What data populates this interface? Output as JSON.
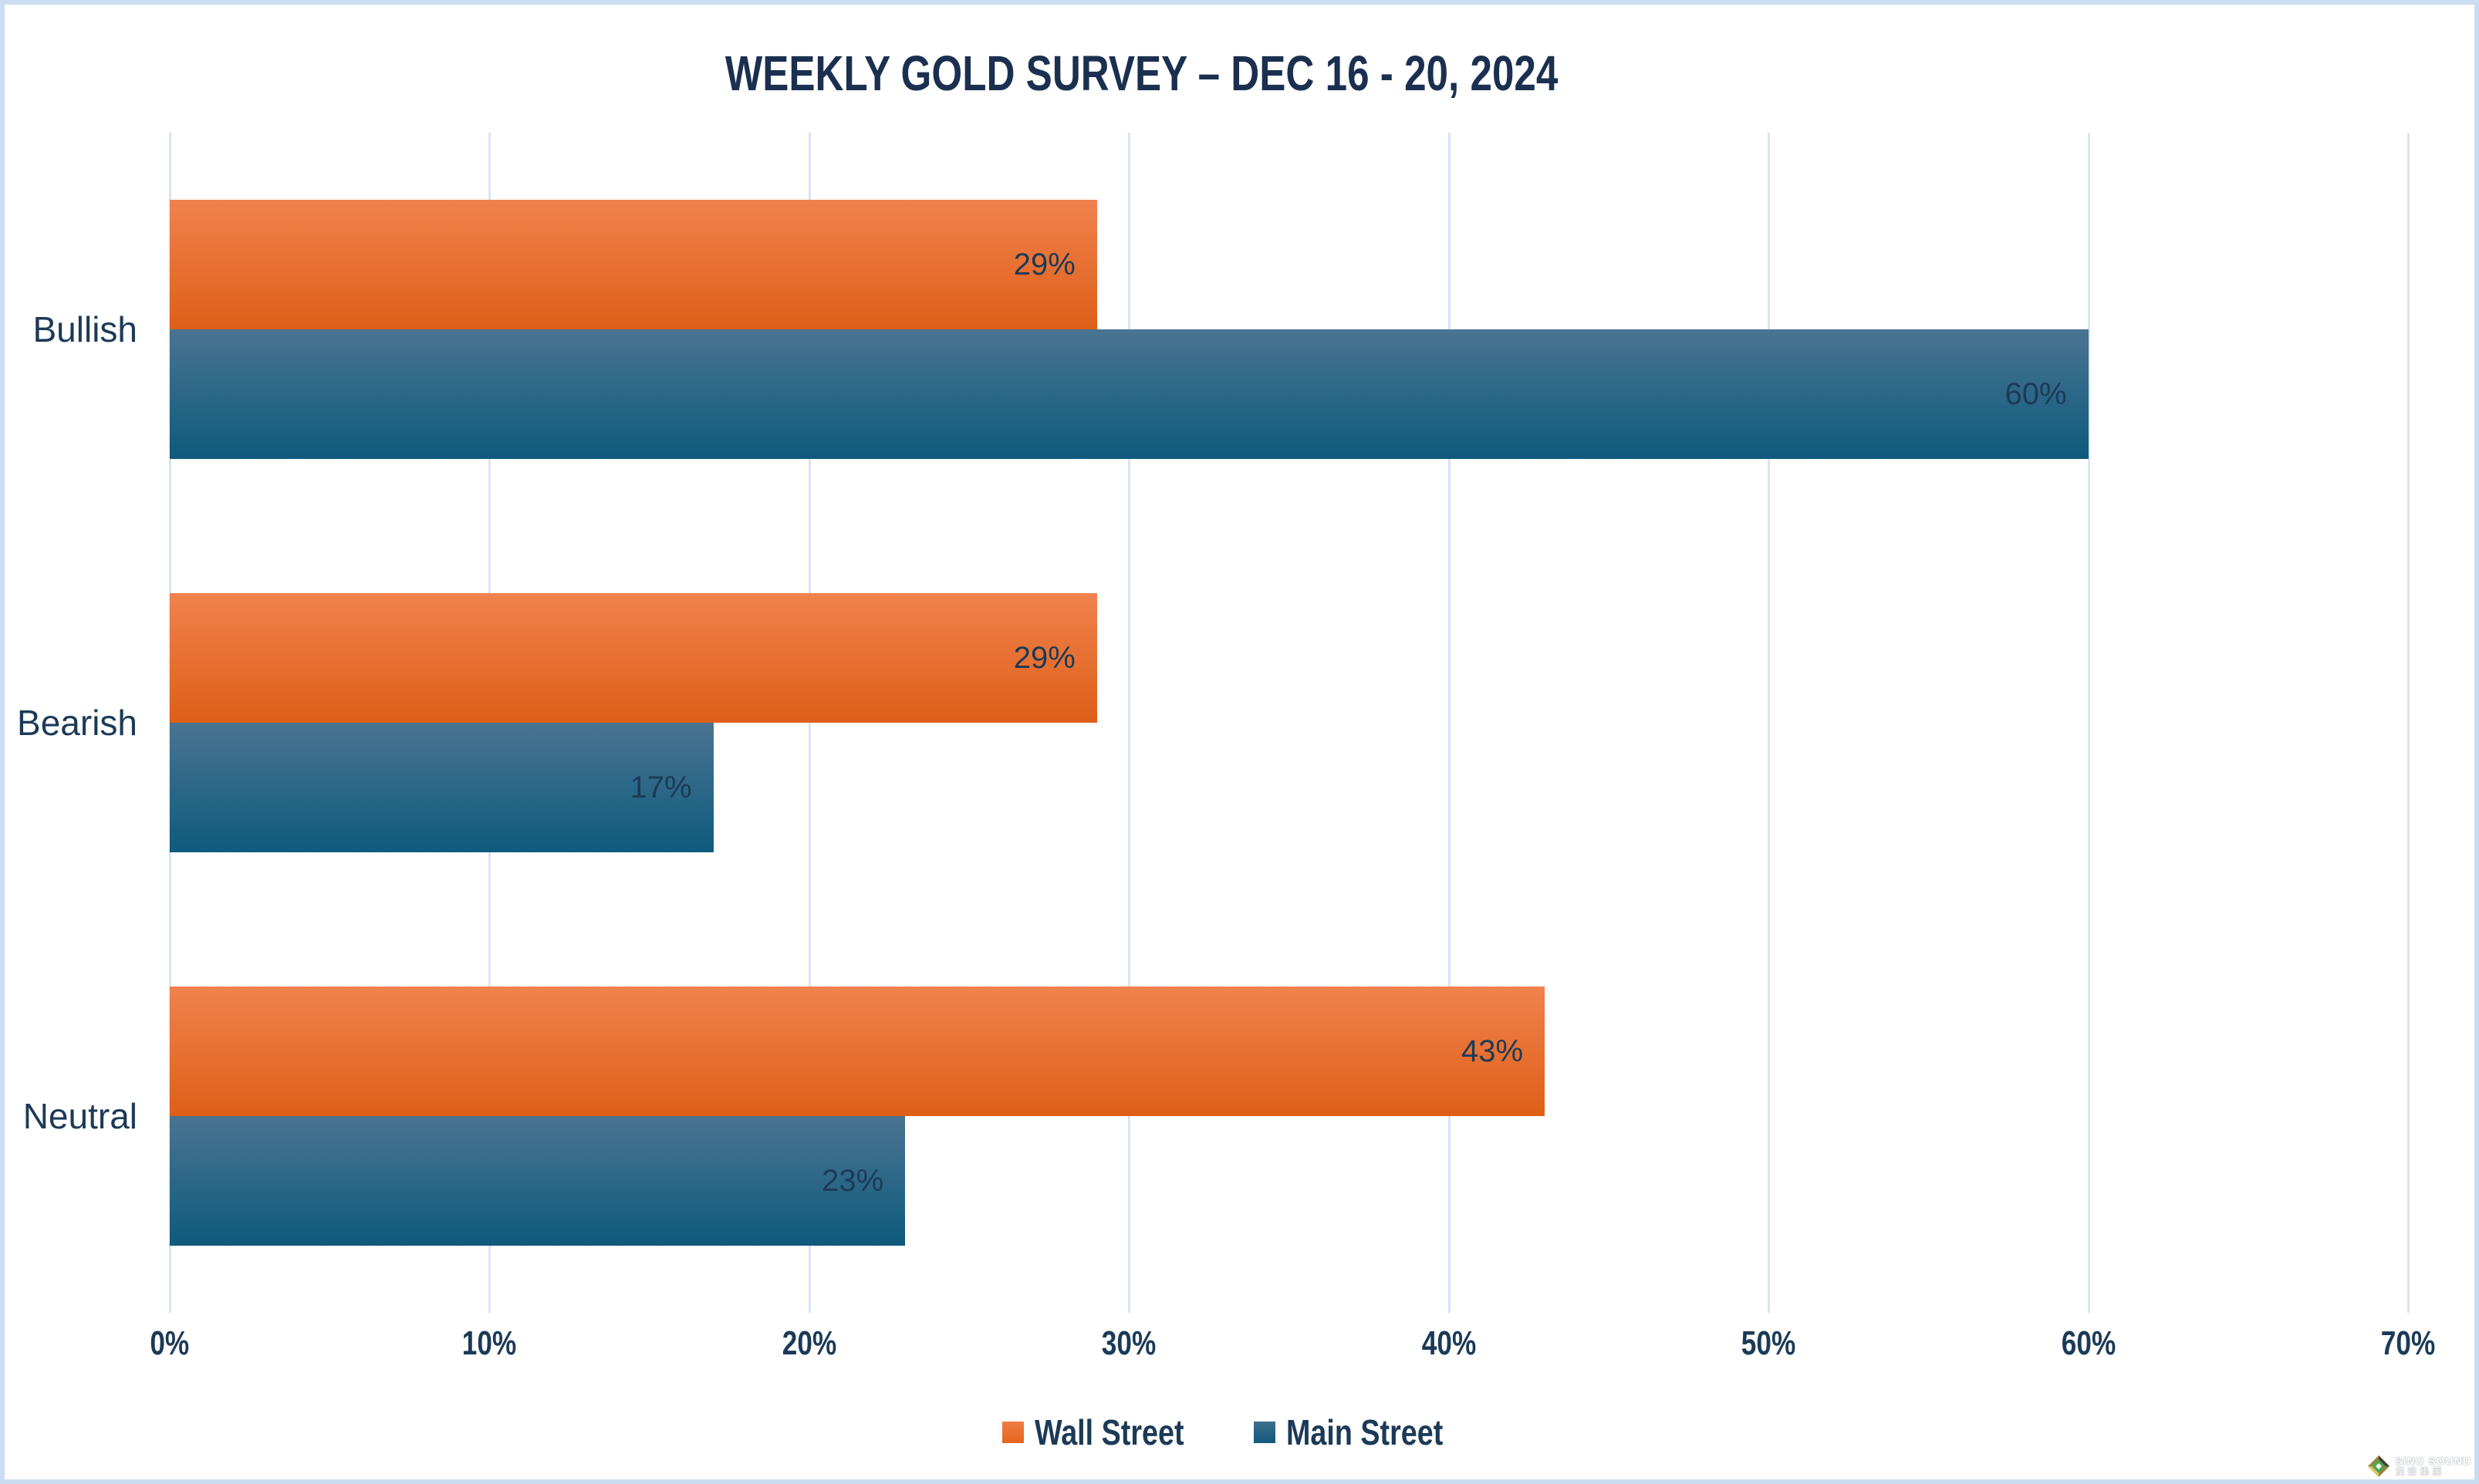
{
  "chart_data": {
    "type": "bar",
    "orientation": "horizontal",
    "title": "WEEKLY GOLD SURVEY – DEC 16 - 20, 2024",
    "categories": [
      "Bullish",
      "Bearish",
      "Neutral"
    ],
    "series": [
      {
        "name": "Wall Street",
        "values": [
          29,
          29,
          43
        ],
        "color_top": "#f0824e",
        "color_bottom": "#de5f17"
      },
      {
        "name": "Main Street",
        "values": [
          60,
          17,
          23
        ],
        "color_top": "#4a7492",
        "color_bottom": "#0e5a7d"
      }
    ],
    "value_suffix": "%",
    "data_labels": [
      "29%",
      "60%",
      "29%",
      "17%",
      "43%",
      "23%"
    ],
    "xlim": [
      0,
      70
    ],
    "x_ticks": [
      "0%",
      "10%",
      "20%",
      "30%",
      "40%",
      "50%",
      "60%",
      "70%"
    ],
    "grid": true,
    "legend_position": "bottom",
    "legend_entries": [
      "Wall Street",
      "Main Street"
    ]
  },
  "colors": {
    "title_text": "#1b3050",
    "axis_text": "#1c3a57",
    "gridline": "#d9e5f2",
    "frame_border": "#c9dcf1",
    "wall_street_orange": "#e8username7030",
    "main_street_blue": "#15587a"
  },
  "watermark": {
    "line1": "SiNO SOUND",
    "line2": "漢聲集團"
  }
}
